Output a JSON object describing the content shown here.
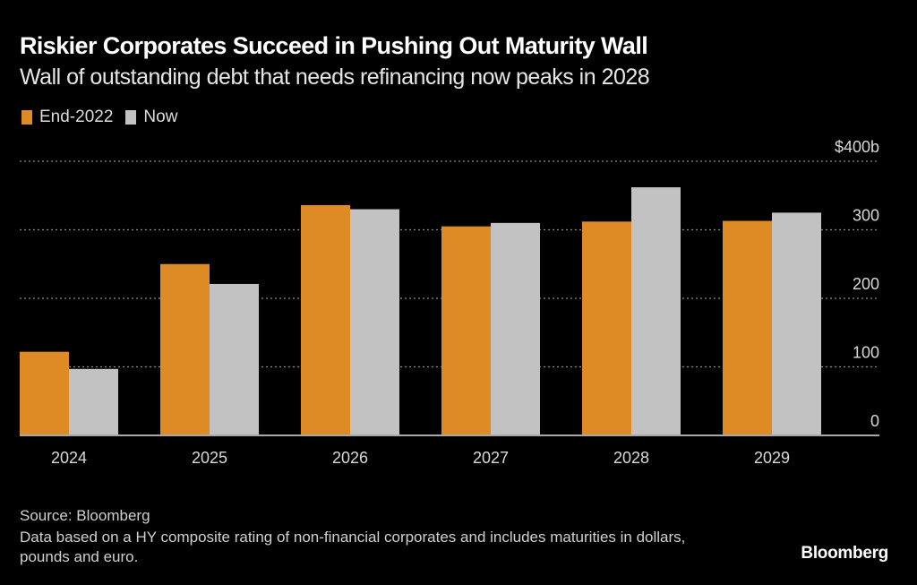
{
  "header": {
    "title": "Riskier Corporates Succeed in Pushing Out Maturity Wall",
    "subtitle": "Wall of outstanding debt that needs refinancing now peaks in 2028"
  },
  "footer": {
    "source": "Source: Bloomberg",
    "note": "Data based on a HY composite rating of non-financial corporates and includes maturities in dollars, pounds and euro.",
    "logo": "Bloomberg"
  },
  "chart_data": {
    "type": "bar",
    "title": "Riskier Corporates Succeed in Pushing Out Maturity Wall",
    "subtitle": "Wall of outstanding debt that needs refinancing now peaks in 2028",
    "xlabel": "",
    "ylabel": "",
    "categories": [
      "2024",
      "2025",
      "2026",
      "2027",
      "2028",
      "2029"
    ],
    "series": [
      {
        "name": "End-2022",
        "color": "#de8b26",
        "values": [
          122,
          250,
          336,
          305,
          312,
          313
        ]
      },
      {
        "name": "Now",
        "color": "#c2c2c2",
        "values": [
          97,
          221,
          330,
          310,
          362,
          325
        ]
      }
    ],
    "ylim": [
      0,
      400
    ],
    "yticks": [
      0,
      100,
      200,
      300,
      400
    ],
    "ytick_labels": [
      "0",
      "100",
      "200",
      "300",
      "$400b"
    ],
    "grid": true,
    "legend": "top-left",
    "y_axis_position": "right"
  }
}
